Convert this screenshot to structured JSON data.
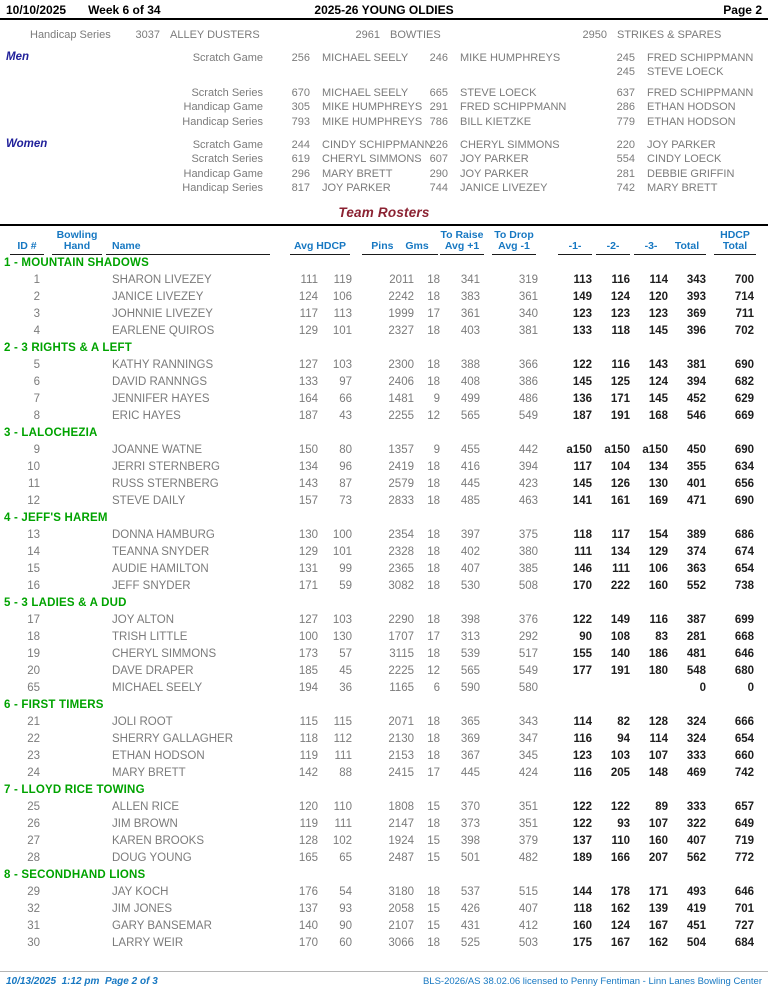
{
  "page": {
    "date": "10/10/2025",
    "week": "Week 6 of 34",
    "title": "2025-26 YOUNG OLDIES",
    "page_label": "Page 2"
  },
  "season_best": {
    "label": "Handicap Series",
    "e": [
      {
        "s": "3037",
        "n": "ALLEY DUSTERS"
      },
      {
        "s": "2961",
        "n": "BOWTIES"
      },
      {
        "s": "2950",
        "n": "STRIKES & SPARES"
      }
    ]
  },
  "best_groups": [
    {
      "group": "Men",
      "rows": [
        {
          "label": "Scratch Game",
          "e": [
            {
              "s": "256",
              "n": "MICHAEL SEELY"
            },
            {
              "s": "246",
              "n": "MIKE HUMPHREYS"
            },
            {
              "s": "245",
              "n": "FRED SCHIPPMANN"
            }
          ]
        },
        {
          "label": "",
          "variant": "gap-after",
          "e": [
            {
              "s": "",
              "n": ""
            },
            {
              "s": "",
              "n": ""
            },
            {
              "s": "245",
              "n": "STEVE LOECK"
            }
          ]
        },
        {
          "label": "Scratch Series",
          "e": [
            {
              "s": "670",
              "n": "MICHAEL SEELY"
            },
            {
              "s": "665",
              "n": "STEVE LOECK"
            },
            {
              "s": "637",
              "n": "FRED SCHIPPMANN"
            }
          ]
        },
        {
          "label": "Handicap Game",
          "e": [
            {
              "s": "305",
              "n": "MIKE HUMPHREYS"
            },
            {
              "s": "291",
              "n": "FRED SCHIPPMANN"
            },
            {
              "s": "286",
              "n": "ETHAN HODSON"
            }
          ]
        },
        {
          "label": "Handicap Series",
          "e": [
            {
              "s": "793",
              "n": "MIKE HUMPHREYS"
            },
            {
              "s": "786",
              "n": "BILL KIETZKE"
            },
            {
              "s": "779",
              "n": "ETHAN HODSON"
            }
          ]
        }
      ]
    },
    {
      "group": "Women",
      "rows": [
        {
          "label": "Scratch Game",
          "e": [
            {
              "s": "244",
              "n": "CINDY SCHIPPMANN"
            },
            {
              "s": "226",
              "n": "CHERYL SIMMONS"
            },
            {
              "s": "220",
              "n": "JOY PARKER"
            }
          ]
        },
        {
          "label": "Scratch Series",
          "e": [
            {
              "s": "619",
              "n": "CHERYL SIMMONS"
            },
            {
              "s": "607",
              "n": "JOY PARKER"
            },
            {
              "s": "554",
              "n": "CINDY LOECK"
            }
          ]
        },
        {
          "label": "Handicap Game",
          "e": [
            {
              "s": "296",
              "n": "MARY BRETT"
            },
            {
              "s": "290",
              "n": "JOY PARKER"
            },
            {
              "s": "281",
              "n": "DEBBIE GRIFFIN"
            }
          ]
        },
        {
          "label": "Handicap Series",
          "e": [
            {
              "s": "817",
              "n": "JOY PARKER"
            },
            {
              "s": "744",
              "n": "JANICE LIVEZEY"
            },
            {
              "s": "742",
              "n": "MARY BRETT"
            }
          ]
        }
      ]
    }
  ],
  "section_title": "Team Rosters",
  "roster": {
    "columns": {
      "id": "ID #",
      "hand_top": "Bowling",
      "hand_bottom": "Hand",
      "name": "Name",
      "avg_hdcp": "Avg HDCP",
      "pins_gms": "Pins Gms",
      "raise_top": "To Raise",
      "raise_bottom": "Avg +1",
      "drop_top": "To Drop",
      "drop_bottom": "Avg -1",
      "g1": "-1-",
      "g2": "-2-",
      "g3": "-3-",
      "total": "Total",
      "hdcp_top": "HDCP",
      "hdcp_bottom": "Total"
    },
    "teams": [
      {
        "team": "1 - MOUNTAIN SHADOWS",
        "players": [
          {
            "id": "1",
            "hand": "",
            "name": "SHARON LIVEZEY",
            "avg": "111",
            "hdcp": "119",
            "pins": "2011",
            "gms": "18",
            "raise": "341",
            "drop": "319",
            "g1": "113",
            "g2": "116",
            "g3": "114",
            "total": "343",
            "hdcp_total": "700"
          },
          {
            "id": "2",
            "hand": "",
            "name": "JANICE LIVEZEY",
            "avg": "124",
            "hdcp": "106",
            "pins": "2242",
            "gms": "18",
            "raise": "383",
            "drop": "361",
            "g1": "149",
            "g2": "124",
            "g3": "120",
            "total": "393",
            "hdcp_total": "714"
          },
          {
            "id": "3",
            "hand": "",
            "name": "JOHNNIE LIVEZEY",
            "avg": "117",
            "hdcp": "113",
            "pins": "1999",
            "gms": "17",
            "raise": "361",
            "drop": "340",
            "g1": "123",
            "g2": "123",
            "g3": "123",
            "total": "369",
            "hdcp_total": "711"
          },
          {
            "id": "4",
            "hand": "",
            "name": "EARLENE QUIROS",
            "avg": "129",
            "hdcp": "101",
            "pins": "2327",
            "gms": "18",
            "raise": "403",
            "drop": "381",
            "g1": "133",
            "g2": "118",
            "g3": "145",
            "total": "396",
            "hdcp_total": "702"
          }
        ]
      },
      {
        "team": "2 - 3 RIGHTS & A LEFT",
        "players": [
          {
            "id": "5",
            "hand": "",
            "name": "KATHY RANNINGS",
            "avg": "127",
            "hdcp": "103",
            "pins": "2300",
            "gms": "18",
            "raise": "388",
            "drop": "366",
            "g1": "122",
            "g2": "116",
            "g3": "143",
            "total": "381",
            "hdcp_total": "690"
          },
          {
            "id": "6",
            "hand": "",
            "name": "DAVID RANNNGS",
            "avg": "133",
            "hdcp": "97",
            "pins": "2406",
            "gms": "18",
            "raise": "408",
            "drop": "386",
            "g1": "145",
            "g2": "125",
            "g3": "124",
            "total": "394",
            "hdcp_total": "682"
          },
          {
            "id": "7",
            "hand": "",
            "name": "JENNIFER HAYES",
            "avg": "164",
            "hdcp": "66",
            "pins": "1481",
            "gms": "9",
            "raise": "499",
            "drop": "486",
            "g1": "136",
            "g2": "171",
            "g3": "145",
            "total": "452",
            "hdcp_total": "629"
          },
          {
            "id": "8",
            "hand": "",
            "name": "ERIC HAYES",
            "avg": "187",
            "hdcp": "43",
            "pins": "2255",
            "gms": "12",
            "raise": "565",
            "drop": "549",
            "g1": "187",
            "g2": "191",
            "g3": "168",
            "total": "546",
            "hdcp_total": "669"
          }
        ]
      },
      {
        "team": "3 - LALOCHEZIA",
        "players": [
          {
            "id": "9",
            "hand": "",
            "name": "JOANNE WATNE",
            "avg": "150",
            "hdcp": "80",
            "pins": "1357",
            "gms": "9",
            "raise": "455",
            "drop": "442",
            "g1": "a150",
            "g2": "a150",
            "g3": "a150",
            "total": "450",
            "hdcp_total": "690"
          },
          {
            "id": "10",
            "hand": "",
            "name": "JERRI STERNBERG",
            "avg": "134",
            "hdcp": "96",
            "pins": "2419",
            "gms": "18",
            "raise": "416",
            "drop": "394",
            "g1": "117",
            "g2": "104",
            "g3": "134",
            "total": "355",
            "hdcp_total": "634"
          },
          {
            "id": "11",
            "hand": "",
            "name": "RUSS STERNBERG",
            "avg": "143",
            "hdcp": "87",
            "pins": "2579",
            "gms": "18",
            "raise": "445",
            "drop": "423",
            "g1": "145",
            "g2": "126",
            "g3": "130",
            "total": "401",
            "hdcp_total": "656"
          },
          {
            "id": "12",
            "hand": "",
            "name": "STEVE DAILY",
            "avg": "157",
            "hdcp": "73",
            "pins": "2833",
            "gms": "18",
            "raise": "485",
            "drop": "463",
            "g1": "141",
            "g2": "161",
            "g3": "169",
            "total": "471",
            "hdcp_total": "690"
          }
        ]
      },
      {
        "team": "4 - JEFF'S HAREM",
        "players": [
          {
            "id": "13",
            "hand": "",
            "name": "DONNA HAMBURG",
            "avg": "130",
            "hdcp": "100",
            "pins": "2354",
            "gms": "18",
            "raise": "397",
            "drop": "375",
            "g1": "118",
            "g2": "117",
            "g3": "154",
            "total": "389",
            "hdcp_total": "686"
          },
          {
            "id": "14",
            "hand": "",
            "name": "TEANNA SNYDER",
            "avg": "129",
            "hdcp": "101",
            "pins": "2328",
            "gms": "18",
            "raise": "402",
            "drop": "380",
            "g1": "111",
            "g2": "134",
            "g3": "129",
            "total": "374",
            "hdcp_total": "674"
          },
          {
            "id": "15",
            "hand": "",
            "name": "AUDIE HAMILTON",
            "avg": "131",
            "hdcp": "99",
            "pins": "2365",
            "gms": "18",
            "raise": "407",
            "drop": "385",
            "g1": "146",
            "g2": "111",
            "g3": "106",
            "total": "363",
            "hdcp_total": "654"
          },
          {
            "id": "16",
            "hand": "",
            "name": "JEFF SNYDER",
            "avg": "171",
            "hdcp": "59",
            "pins": "3082",
            "gms": "18",
            "raise": "530",
            "drop": "508",
            "g1": "170",
            "g2": "222",
            "g3": "160",
            "total": "552",
            "hdcp_total": "738"
          }
        ]
      },
      {
        "team": "5 - 3 LADIES & A DUD",
        "players": [
          {
            "id": "17",
            "hand": "",
            "name": "JOY ALTON",
            "avg": "127",
            "hdcp": "103",
            "pins": "2290",
            "gms": "18",
            "raise": "398",
            "drop": "376",
            "g1": "122",
            "g2": "149",
            "g3": "116",
            "total": "387",
            "hdcp_total": "699"
          },
          {
            "id": "18",
            "hand": "",
            "name": "TRISH LITTLE",
            "avg": "100",
            "hdcp": "130",
            "pins": "1707",
            "gms": "17",
            "raise": "313",
            "drop": "292",
            "g1": "90",
            "g2": "108",
            "g3": "83",
            "total": "281",
            "hdcp_total": "668"
          },
          {
            "id": "19",
            "hand": "",
            "name": "CHERYL SIMMONS",
            "avg": "173",
            "hdcp": "57",
            "pins": "3115",
            "gms": "18",
            "raise": "539",
            "drop": "517",
            "g1": "155",
            "g2": "140",
            "g3": "186",
            "total": "481",
            "hdcp_total": "646"
          },
          {
            "id": "20",
            "hand": "",
            "name": "DAVE DRAPER",
            "avg": "185",
            "hdcp": "45",
            "pins": "2225",
            "gms": "12",
            "raise": "565",
            "drop": "549",
            "g1": "177",
            "g2": "191",
            "g3": "180",
            "total": "548",
            "hdcp_total": "680"
          },
          {
            "id": "65",
            "hand": "",
            "name": "MICHAEL SEELY",
            "avg": "194",
            "hdcp": "36",
            "pins": "1165",
            "gms": "6",
            "raise": "590",
            "drop": "580",
            "g1": "",
            "g2": "",
            "g3": "",
            "total": "0",
            "hdcp_total": "0"
          }
        ]
      },
      {
        "team": "6 - FIRST TIMERS",
        "players": [
          {
            "id": "21",
            "hand": "",
            "name": "JOLI ROOT",
            "avg": "115",
            "hdcp": "115",
            "pins": "2071",
            "gms": "18",
            "raise": "365",
            "drop": "343",
            "g1": "114",
            "g2": "82",
            "g3": "128",
            "total": "324",
            "hdcp_total": "666"
          },
          {
            "id": "22",
            "hand": "",
            "name": "SHERRY GALLAGHER",
            "avg": "118",
            "hdcp": "112",
            "pins": "2130",
            "gms": "18",
            "raise": "369",
            "drop": "347",
            "g1": "116",
            "g2": "94",
            "g3": "114",
            "total": "324",
            "hdcp_total": "654"
          },
          {
            "id": "23",
            "hand": "",
            "name": "ETHAN HODSON",
            "avg": "119",
            "hdcp": "111",
            "pins": "2153",
            "gms": "18",
            "raise": "367",
            "drop": "345",
            "g1": "123",
            "g2": "103",
            "g3": "107",
            "total": "333",
            "hdcp_total": "660"
          },
          {
            "id": "24",
            "hand": "",
            "name": "MARY BRETT",
            "avg": "142",
            "hdcp": "88",
            "pins": "2415",
            "gms": "17",
            "raise": "445",
            "drop": "424",
            "g1": "116",
            "g2": "205",
            "g3": "148",
            "total": "469",
            "hdcp_total": "742"
          }
        ]
      },
      {
        "team": "7 - LLOYD RICE TOWING",
        "players": [
          {
            "id": "25",
            "hand": "",
            "name": "ALLEN RICE",
            "avg": "120",
            "hdcp": "110",
            "pins": "1808",
            "gms": "15",
            "raise": "370",
            "drop": "351",
            "g1": "122",
            "g2": "122",
            "g3": "89",
            "total": "333",
            "hdcp_total": "657"
          },
          {
            "id": "26",
            "hand": "",
            "name": "JIM BROWN",
            "avg": "119",
            "hdcp": "111",
            "pins": "2147",
            "gms": "18",
            "raise": "373",
            "drop": "351",
            "g1": "122",
            "g2": "93",
            "g3": "107",
            "total": "322",
            "hdcp_total": "649"
          },
          {
            "id": "27",
            "hand": "",
            "name": "KAREN BROOKS",
            "avg": "128",
            "hdcp": "102",
            "pins": "1924",
            "gms": "15",
            "raise": "398",
            "drop": "379",
            "g1": "137",
            "g2": "110",
            "g3": "160",
            "total": "407",
            "hdcp_total": "719"
          },
          {
            "id": "28",
            "hand": "",
            "name": "DOUG YOUNG",
            "avg": "165",
            "hdcp": "65",
            "pins": "2487",
            "gms": "15",
            "raise": "501",
            "drop": "482",
            "g1": "189",
            "g2": "166",
            "g3": "207",
            "total": "562",
            "hdcp_total": "772"
          }
        ]
      },
      {
        "team": "8 - SECONDHAND LIONS",
        "players": [
          {
            "id": "29",
            "hand": "",
            "name": "JAY KOCH",
            "avg": "176",
            "hdcp": "54",
            "pins": "3180",
            "gms": "18",
            "raise": "537",
            "drop": "515",
            "g1": "144",
            "g2": "178",
            "g3": "171",
            "total": "493",
            "hdcp_total": "646"
          },
          {
            "id": "32",
            "hand": "",
            "name": "JIM JONES",
            "avg": "137",
            "hdcp": "93",
            "pins": "2058",
            "gms": "15",
            "raise": "426",
            "drop": "407",
            "g1": "118",
            "g2": "162",
            "g3": "139",
            "total": "419",
            "hdcp_total": "701"
          },
          {
            "id": "31",
            "hand": "",
            "name": "GARY BANSEMAR",
            "avg": "140",
            "hdcp": "90",
            "pins": "2107",
            "gms": "15",
            "raise": "431",
            "drop": "412",
            "g1": "160",
            "g2": "124",
            "g3": "167",
            "total": "451",
            "hdcp_total": "727"
          },
          {
            "id": "30",
            "hand": "",
            "name": "LARRY WEIR",
            "avg": "170",
            "hdcp": "60",
            "pins": "3066",
            "gms": "18",
            "raise": "525",
            "drop": "503",
            "g1": "175",
            "g2": "167",
            "g3": "162",
            "total": "504",
            "hdcp_total": "684"
          }
        ]
      }
    ]
  },
  "footer": {
    "left": "10/13/2025  1:12 pm  Page 2 of 3",
    "right": "BLS-2026/AS 38.02.06 licensed to Penny Fentiman - Linn Lanes Bowling Center"
  },
  "colors": {
    "header_blue": "#1778c2",
    "team_green": "#00a300",
    "title_maroon": "#8b2232",
    "gender_navy": "#20209a",
    "text_gray": "#7b7b7b",
    "score_dark": "#1e1e1e"
  }
}
